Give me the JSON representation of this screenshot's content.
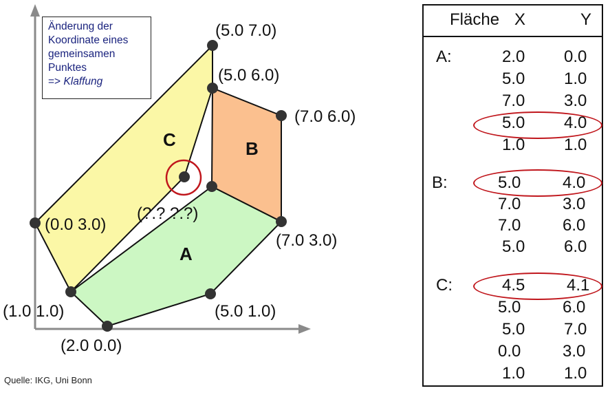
{
  "info_box": {
    "line1": "Änderung der",
    "line2": "Koordinate eines",
    "line3": "gemeinsamen",
    "line4": "Punktes",
    "line5_prefix": "=> ",
    "line5_em": "Klaffung"
  },
  "face_labels": {
    "a": "A",
    "b": "B",
    "c": "C"
  },
  "coord_labels": {
    "p57": "(5.0  7.0)",
    "p56": "(5.0  6.0)",
    "p76": "(7.0  6.0)",
    "p03": "(0.0  3.0)",
    "pq": "(?.?  ?.?)",
    "p73": "(7.0  3.0)",
    "p11": "(1.0  1.0)",
    "p51": "(5.0  1.0)",
    "p20": "(2.0   0.0)"
  },
  "source": "Quelle: IKG, Uni Bonn",
  "table": {
    "header": {
      "flaeche": "Fläche",
      "x": "X",
      "y": "Y"
    },
    "groups": [
      {
        "label": "A:",
        "rows": [
          {
            "x": "2.0",
            "y": "0.0"
          },
          {
            "x": "5.0",
            "y": "1.0"
          },
          {
            "x": "7.0",
            "y": "3.0"
          },
          {
            "x": "5.0",
            "y": "4.0"
          },
          {
            "x": "1.0",
            "y": "1.0"
          }
        ]
      },
      {
        "label": "B:",
        "rows": [
          {
            "x": "5.0",
            "y": "4.0"
          },
          {
            "x": "7.0",
            "y": "3.0"
          },
          {
            "x": "7.0",
            "y": "6.0"
          },
          {
            "x": "5.0",
            "y": "6.0"
          }
        ]
      },
      {
        "label": "C:",
        "rows": [
          {
            "x": "4.5",
            "y": "4.1"
          },
          {
            "x": "5.0",
            "y": "6.0"
          },
          {
            "x": "5.0",
            "y": "7.0"
          },
          {
            "x": "0.0",
            "y": "3.0"
          },
          {
            "x": "1.0",
            "y": "1.0"
          }
        ]
      }
    ]
  },
  "colors": {
    "face_a": "#ccf7c3",
    "face_b": "#fbc08f",
    "face_c": "#fbf7a6",
    "highlight": "#c0161c",
    "axis": "#8a8a8a",
    "info_text": "#1a237e"
  }
}
